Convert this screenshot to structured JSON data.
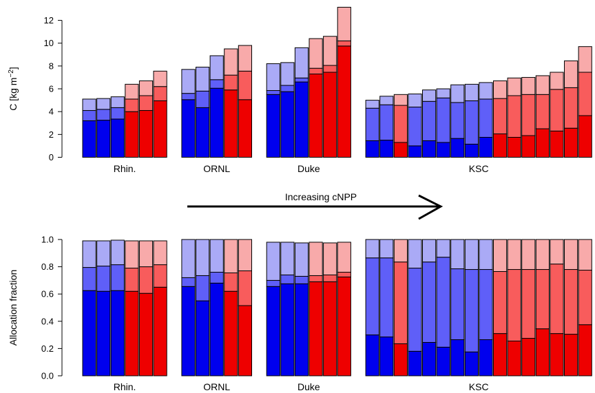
{
  "colors": {
    "blue_dark": "#0000ee",
    "blue_mid": "#5f5ff8",
    "blue_light": "#aaaaf6",
    "red_dark": "#ee0000",
    "red_mid": "#f85c5c",
    "red_light": "#f8aaaa"
  },
  "annotation": {
    "text": "Increasing cNPP"
  },
  "chart_data": [
    {
      "type": "bar",
      "stacked": true,
      "title": "",
      "xlabel": "",
      "ylabel": "C [kg m",
      "ylabel_sup": "−2",
      "ylabel_close": "]",
      "ylim": [
        0,
        13.3
      ],
      "yticks": [
        0,
        2,
        4,
        6,
        8,
        10,
        12
      ],
      "ytick_labels": [
        "0",
        "2",
        "4",
        "6",
        "8",
        "10",
        "12"
      ],
      "grid": false,
      "groups": [
        {
          "label": "Rhin.",
          "bars": [
            {
              "color": "blue",
              "values": [
                3.2,
                4.1,
                5.1
              ]
            },
            {
              "color": "blue",
              "values": [
                3.25,
                4.2,
                5.15
              ]
            },
            {
              "color": "blue",
              "values": [
                3.35,
                4.35,
                5.3
              ]
            },
            {
              "color": "red",
              "values": [
                4.0,
                5.1,
                6.4
              ]
            },
            {
              "color": "red",
              "values": [
                4.1,
                5.4,
                6.7
              ]
            },
            {
              "color": "red",
              "values": [
                4.95,
                6.2,
                7.55
              ]
            }
          ]
        },
        {
          "label": "ORNL",
          "bars": [
            {
              "color": "blue",
              "values": [
                5.05,
                5.6,
                7.7
              ]
            },
            {
              "color": "blue",
              "values": [
                4.35,
                5.8,
                7.9
              ]
            },
            {
              "color": "blue",
              "values": [
                6.05,
                6.8,
                8.9
              ]
            },
            {
              "color": "red",
              "values": [
                5.9,
                7.2,
                9.5
              ]
            },
            {
              "color": "red",
              "values": [
                5.05,
                7.55,
                9.8
              ]
            }
          ]
        },
        {
          "label": "Duke",
          "bars": [
            {
              "color": "blue",
              "values": [
                5.5,
                5.85,
                8.2
              ]
            },
            {
              "color": "blue",
              "values": [
                5.75,
                6.3,
                8.3
              ]
            },
            {
              "color": "blue",
              "values": [
                6.6,
                6.95,
                9.6
              ]
            },
            {
              "color": "red",
              "values": [
                7.3,
                7.8,
                10.4
              ]
            },
            {
              "color": "red",
              "values": [
                7.45,
                8.05,
                10.6
              ]
            },
            {
              "color": "red",
              "values": [
                9.75,
                10.2,
                13.15
              ]
            }
          ]
        },
        {
          "label": "KSC",
          "bars": [
            {
              "color": "blue",
              "values": [
                1.45,
                4.3,
                5.0
              ]
            },
            {
              "color": "blue",
              "values": [
                1.5,
                4.6,
                5.35
              ]
            },
            {
              "color": "red",
              "values": [
                1.3,
                4.55,
                5.5
              ]
            },
            {
              "color": "blue",
              "values": [
                1.0,
                4.4,
                5.55
              ]
            },
            {
              "color": "blue",
              "values": [
                1.45,
                4.9,
                5.9
              ]
            },
            {
              "color": "blue",
              "values": [
                1.3,
                5.2,
                6.0
              ]
            },
            {
              "color": "blue",
              "values": [
                1.65,
                4.8,
                6.35
              ]
            },
            {
              "color": "blue",
              "values": [
                1.15,
                4.95,
                6.4
              ]
            },
            {
              "color": "blue",
              "values": [
                1.75,
                5.1,
                6.55
              ]
            },
            {
              "color": "red",
              "values": [
                2.05,
                5.15,
                6.7
              ]
            },
            {
              "color": "red",
              "values": [
                1.75,
                5.4,
                6.95
              ]
            },
            {
              "color": "red",
              "values": [
                1.9,
                5.5,
                7.0
              ]
            },
            {
              "color": "red",
              "values": [
                2.5,
                5.5,
                7.15
              ]
            },
            {
              "color": "red",
              "values": [
                2.3,
                5.95,
                7.45
              ]
            },
            {
              "color": "red",
              "values": [
                2.55,
                6.1,
                8.45
              ]
            },
            {
              "color": "red",
              "values": [
                3.65,
                7.45,
                9.7
              ]
            }
          ]
        }
      ]
    },
    {
      "type": "bar",
      "stacked": true,
      "title": "",
      "xlabel": "",
      "ylabel": "Allocation fraction",
      "ylim": [
        0,
        1.02
      ],
      "yticks": [
        0,
        0.2,
        0.4,
        0.6,
        0.8,
        1.0
      ],
      "ytick_labels": [
        "0.0",
        "0.2",
        "0.4",
        "0.6",
        "0.8",
        "1.0"
      ],
      "grid": false,
      "groups": [
        {
          "label": "Rhin.",
          "bars": [
            {
              "color": "blue",
              "values": [
                0.625,
                0.795,
                0.99
              ]
            },
            {
              "color": "blue",
              "values": [
                0.62,
                0.805,
                0.99
              ]
            },
            {
              "color": "blue",
              "values": [
                0.625,
                0.815,
                0.995
              ]
            },
            {
              "color": "red",
              "values": [
                0.62,
                0.79,
                0.99
              ]
            },
            {
              "color": "red",
              "values": [
                0.605,
                0.8,
                0.99
              ]
            },
            {
              "color": "red",
              "values": [
                0.65,
                0.815,
                0.99
              ]
            }
          ]
        },
        {
          "label": "ORNL",
          "bars": [
            {
              "color": "blue",
              "values": [
                0.655,
                0.72,
                1.0
              ]
            },
            {
              "color": "blue",
              "values": [
                0.55,
                0.735,
                1.0
              ]
            },
            {
              "color": "blue",
              "values": [
                0.68,
                0.76,
                1.0
              ]
            },
            {
              "color": "red",
              "values": [
                0.62,
                0.755,
                1.0
              ]
            },
            {
              "color": "red",
              "values": [
                0.515,
                0.77,
                1.0
              ]
            }
          ]
        },
        {
          "label": "Duke",
          "bars": [
            {
              "color": "blue",
              "values": [
                0.655,
                0.7,
                0.98
              ]
            },
            {
              "color": "blue",
              "values": [
                0.675,
                0.74,
                0.98
              ]
            },
            {
              "color": "blue",
              "values": [
                0.675,
                0.73,
                0.975
              ]
            },
            {
              "color": "red",
              "values": [
                0.69,
                0.735,
                0.98
              ]
            },
            {
              "color": "red",
              "values": [
                0.69,
                0.74,
                0.975
              ]
            },
            {
              "color": "red",
              "values": [
                0.725,
                0.76,
                0.98
              ]
            }
          ]
        },
        {
          "label": "KSC",
          "bars": [
            {
              "color": "blue",
              "values": [
                0.3,
                0.865,
                1.0
              ]
            },
            {
              "color": "blue",
              "values": [
                0.285,
                0.865,
                1.0
              ]
            },
            {
              "color": "red",
              "values": [
                0.235,
                0.835,
                1.0
              ]
            },
            {
              "color": "blue",
              "values": [
                0.18,
                0.79,
                1.0
              ]
            },
            {
              "color": "blue",
              "values": [
                0.245,
                0.835,
                1.0
              ]
            },
            {
              "color": "blue",
              "values": [
                0.21,
                0.87,
                1.0
              ]
            },
            {
              "color": "blue",
              "values": [
                0.265,
                0.785,
                1.0
              ]
            },
            {
              "color": "blue",
              "values": [
                0.175,
                0.78,
                1.0
              ]
            },
            {
              "color": "blue",
              "values": [
                0.265,
                0.78,
                1.0
              ]
            },
            {
              "color": "red",
              "values": [
                0.31,
                0.765,
                1.0
              ]
            },
            {
              "color": "red",
              "values": [
                0.255,
                0.78,
                1.0
              ]
            },
            {
              "color": "red",
              "values": [
                0.275,
                0.78,
                1.0
              ]
            },
            {
              "color": "red",
              "values": [
                0.345,
                0.78,
                1.0
              ]
            },
            {
              "color": "red",
              "values": [
                0.31,
                0.82,
                1.0
              ]
            },
            {
              "color": "red",
              "values": [
                0.305,
                0.78,
                1.0
              ]
            },
            {
              "color": "red",
              "values": [
                0.375,
                0.775,
                1.0
              ]
            }
          ]
        }
      ]
    }
  ]
}
